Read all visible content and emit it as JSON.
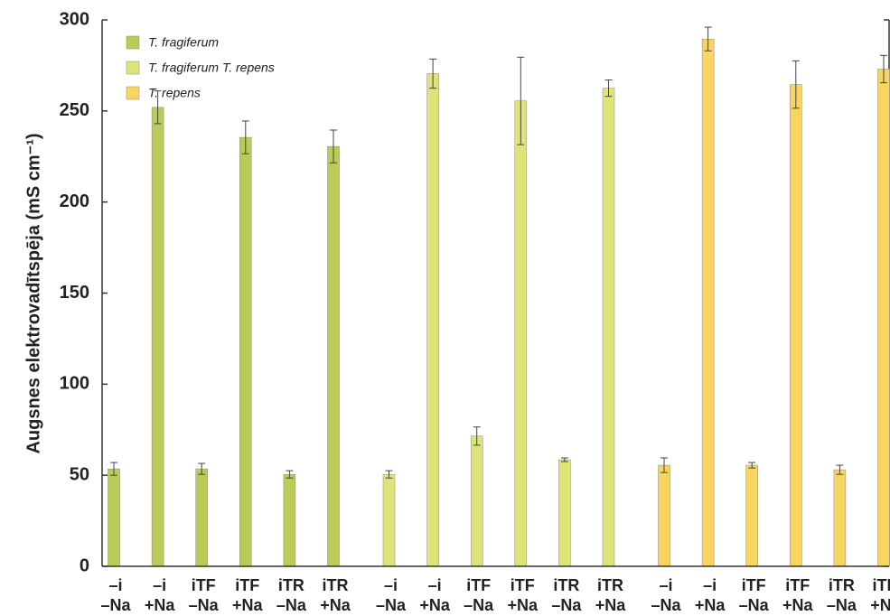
{
  "chart_data": {
    "type": "bar",
    "y_label": "Augsnes elektrovadītspēja  (mS cm⁻¹)",
    "categories": [
      [
        "–i",
        "–Na"
      ],
      [
        "–i",
        "+Na"
      ],
      [
        "iTF",
        "–Na"
      ],
      [
        "iTF",
        "+Na"
      ],
      [
        "iTR",
        "–Na"
      ],
      [
        "iTR",
        "+Na"
      ]
    ],
    "series": [
      {
        "name": "T. fragiferum",
        "color": "#bccb57",
        "values": [
          53.5,
          252,
          53.5,
          235.5,
          50.5,
          230.5
        ],
        "errors": [
          3.5,
          9,
          3,
          9,
          2,
          9
        ]
      },
      {
        "name": "T. fragiferum T. repens",
        "color": "#dde57a",
        "values": [
          50.5,
          270.5,
          71.5,
          255.5,
          58.5,
          262.5
        ],
        "errors": [
          2,
          8,
          5,
          24,
          1,
          4.5
        ]
      },
      {
        "name": "T. repens",
        "color": "#f7d560",
        "values": [
          55.5,
          289.5,
          55.5,
          264.5,
          53,
          273
        ],
        "errors": [
          4,
          6.5,
          1.5,
          13,
          2.5,
          7.5
        ]
      }
    ],
    "ylim": [
      0,
      300
    ],
    "yticks": [
      0,
      50,
      100,
      150,
      200,
      250,
      300
    ],
    "legend": "upper left"
  }
}
